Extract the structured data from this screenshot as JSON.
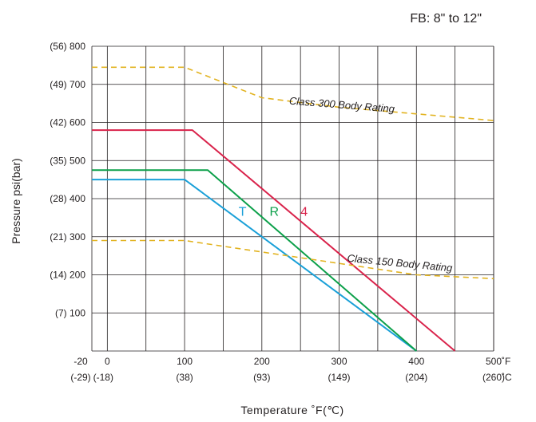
{
  "chart_data": {
    "type": "line",
    "title": "",
    "subtitle": "FB: 8\" to 12\"",
    "xlabel": "Temperature  ˚F(℃)",
    "ylabel": "Pressure psi(bar)",
    "xlim": [
      -20,
      500
    ],
    "ylim": [
      0,
      800
    ],
    "grid": true,
    "x_ticks": [
      {
        "value": -20,
        "f": "-20",
        "c": "(-29)"
      },
      {
        "value": 0,
        "f": "0",
        "c": "(-18)"
      },
      {
        "value": 100,
        "f": "100",
        "c": "(38)"
      },
      {
        "value": 200,
        "f": "200",
        "c": "(93)"
      },
      {
        "value": 300,
        "f": "300",
        "c": "(149)"
      },
      {
        "value": 400,
        "f": "400",
        "c": "(204)"
      },
      {
        "value": 500,
        "f": "500",
        "c": "(260)"
      }
    ],
    "x_unit_f": "˚F",
    "x_unit_c": "˚C",
    "y_ticks": [
      {
        "value": 800,
        "label": "(56) 800"
      },
      {
        "value": 700,
        "label": "(49) 700"
      },
      {
        "value": 600,
        "label": "(42) 600"
      },
      {
        "value": 500,
        "label": "(35) 500"
      },
      {
        "value": 400,
        "label": "(28) 400"
      },
      {
        "value": 300,
        "label": "(21) 300"
      },
      {
        "value": 200,
        "label": "(14) 200"
      },
      {
        "value": 100,
        "label": "(7)   100"
      }
    ],
    "series": [
      {
        "name": "T",
        "color": "#1aa0d8",
        "style": "solid",
        "points": [
          [
            -20,
            450
          ],
          [
            100,
            450
          ],
          [
            400,
            0
          ]
        ]
      },
      {
        "name": "R",
        "color": "#0ca04a",
        "style": "solid",
        "points": [
          [
            -20,
            475
          ],
          [
            130,
            475
          ],
          [
            400,
            0
          ]
        ]
      },
      {
        "name": "4",
        "color": "#d9234b",
        "style": "solid",
        "points": [
          [
            -20,
            580
          ],
          [
            110,
            580
          ],
          [
            450,
            0
          ]
        ]
      },
      {
        "name": "Class 300 Body Rating",
        "color": "#e2b320",
        "style": "dashed",
        "points": [
          [
            -20,
            745
          ],
          [
            100,
            745
          ],
          [
            200,
            665
          ],
          [
            300,
            640
          ],
          [
            500,
            605
          ]
        ]
      },
      {
        "name": "Class 150 Body Rating",
        "color": "#e2b320",
        "style": "dashed",
        "points": [
          [
            -20,
            290
          ],
          [
            100,
            290
          ],
          [
            200,
            260
          ],
          [
            300,
            230
          ],
          [
            400,
            200
          ],
          [
            500,
            190
          ]
        ]
      }
    ],
    "annotations": [
      {
        "text": "T",
        "x": 170,
        "y": 355
      },
      {
        "text": "R",
        "x": 210,
        "y": 355
      },
      {
        "text": "4",
        "x": 250,
        "y": 355
      },
      {
        "text": "Class 300 Body Rating",
        "x": 235,
        "y": 648
      },
      {
        "text": "Class 150 Body Rating",
        "x": 310,
        "y": 235
      }
    ]
  }
}
